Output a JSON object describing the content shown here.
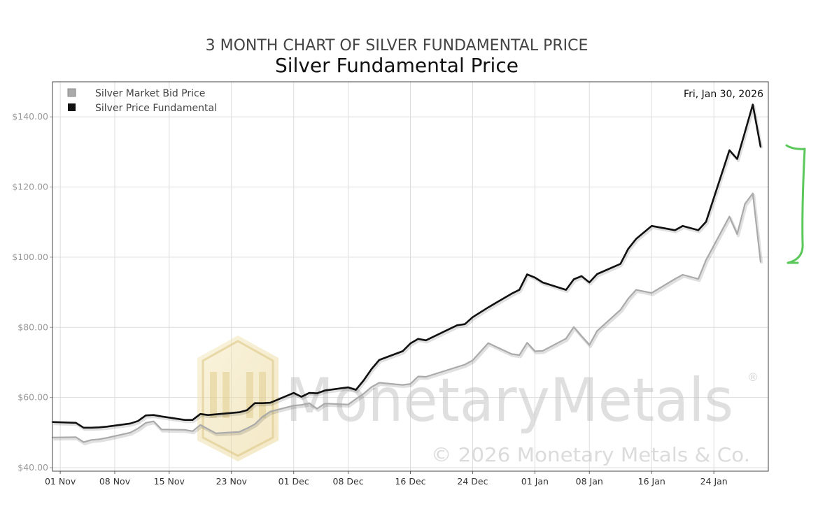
{
  "page": {
    "suptitle": "3 MONTH CHART OF SILVER FUNDAMENTAL PRICE",
    "date_label": "Fri, Jan 30, 2026",
    "watermark": "MonetaryMetals",
    "watermark_registered": "®",
    "copyright": "© 2026 Monetary Metals & Co."
  },
  "colors": {
    "fundamental": "#111111",
    "bid": "#aaaaaa",
    "grid": "#dddddd",
    "annotation": "#5cc85c"
  },
  "chart_data": {
    "type": "line",
    "title": "Silver Fundamental Price",
    "xlabel": "",
    "ylabel": "",
    "ylim": [
      39,
      150
    ],
    "xlim": [
      "2025-10-31",
      "2026-01-31"
    ],
    "grid": true,
    "legend_position": "top-left",
    "y_ticks": [
      40,
      60,
      80,
      100,
      120,
      140
    ],
    "y_tick_labels": [
      "$40.00",
      "$60.00",
      "$80.00",
      "$100.00",
      "$120.00",
      "$140.00"
    ],
    "x_ticks": [
      "2025-11-01",
      "2025-11-08",
      "2025-11-15",
      "2025-11-23",
      "2025-12-01",
      "2025-12-08",
      "2025-12-16",
      "2025-12-24",
      "2026-01-01",
      "2026-01-08",
      "2026-01-16",
      "2026-01-24"
    ],
    "x_tick_labels": [
      "01 Nov",
      "08 Nov",
      "15 Nov",
      "23 Nov",
      "01 Dec",
      "08 Dec",
      "16 Dec",
      "24 Dec",
      "01 Jan",
      "08 Jan",
      "16 Jan",
      "24 Jan"
    ],
    "series": [
      {
        "name": "Silver Market Bid Price",
        "color": "#aaaaaa",
        "points": [
          [
            "2025-10-31",
            48.6
          ],
          [
            "2025-11-03",
            48.7
          ],
          [
            "2025-11-04",
            47.3
          ],
          [
            "2025-11-05",
            47.9
          ],
          [
            "2025-11-06",
            48.1
          ],
          [
            "2025-11-07",
            48.5
          ],
          [
            "2025-11-10",
            50.0
          ],
          [
            "2025-11-11",
            51.2
          ],
          [
            "2025-11-12",
            52.8
          ],
          [
            "2025-11-13",
            53.2
          ],
          [
            "2025-11-14",
            50.9
          ],
          [
            "2025-11-17",
            50.8
          ],
          [
            "2025-11-18",
            50.4
          ],
          [
            "2025-11-19",
            52.2
          ],
          [
            "2025-11-20",
            51.0
          ],
          [
            "2025-11-21",
            49.8
          ],
          [
            "2025-11-24",
            50.2
          ],
          [
            "2025-11-25",
            51.2
          ],
          [
            "2025-11-26",
            52.4
          ],
          [
            "2025-11-27",
            54.5
          ],
          [
            "2025-11-28",
            56.0
          ],
          [
            "2025-12-01",
            57.7
          ],
          [
            "2025-12-02",
            57.9
          ],
          [
            "2025-12-03",
            58.4
          ],
          [
            "2025-12-04",
            56.8
          ],
          [
            "2025-12-05",
            58.3
          ],
          [
            "2025-12-08",
            58.0
          ],
          [
            "2025-12-09",
            59.6
          ],
          [
            "2025-12-10",
            61.1
          ],
          [
            "2025-12-11",
            63.0
          ],
          [
            "2025-12-12",
            64.2
          ],
          [
            "2025-12-15",
            63.6
          ],
          [
            "2025-12-16",
            63.9
          ],
          [
            "2025-12-17",
            66.0
          ],
          [
            "2025-12-18",
            65.9
          ],
          [
            "2025-12-22",
            68.7
          ],
          [
            "2025-12-23",
            69.4
          ],
          [
            "2025-12-24",
            70.6
          ],
          [
            "2025-12-26",
            75.5
          ],
          [
            "2025-12-29",
            72.4
          ],
          [
            "2025-12-30",
            72.1
          ],
          [
            "2025-12-31",
            75.6
          ],
          [
            "2026-01-01",
            73.2
          ],
          [
            "2026-01-02",
            73.3
          ],
          [
            "2026-01-05",
            76.8
          ],
          [
            "2026-01-06",
            80.1
          ],
          [
            "2026-01-07",
            77.5
          ],
          [
            "2026-01-08",
            75.0
          ],
          [
            "2026-01-09",
            79.0
          ],
          [
            "2026-01-12",
            85.0
          ],
          [
            "2026-01-13",
            88.2
          ],
          [
            "2026-01-14",
            90.7
          ],
          [
            "2026-01-16",
            89.8
          ],
          [
            "2026-01-19",
            93.8
          ],
          [
            "2026-01-20",
            95.0
          ],
          [
            "2026-01-22",
            93.8
          ],
          [
            "2026-01-23",
            99.2
          ],
          [
            "2026-01-26",
            111.6
          ],
          [
            "2026-01-27",
            106.6
          ],
          [
            "2026-01-28",
            115.2
          ],
          [
            "2026-01-29",
            118.2
          ],
          [
            "2026-01-30",
            98.7
          ]
        ]
      },
      {
        "name": "Silver Price Fundamental",
        "color": "#111111",
        "points": [
          [
            "2025-10-31",
            53.0
          ],
          [
            "2025-11-03",
            52.8
          ],
          [
            "2025-11-04",
            51.4
          ],
          [
            "2025-11-05",
            51.4
          ],
          [
            "2025-11-06",
            51.5
          ],
          [
            "2025-11-07",
            51.7
          ],
          [
            "2025-11-10",
            52.6
          ],
          [
            "2025-11-11",
            53.3
          ],
          [
            "2025-11-12",
            54.9
          ],
          [
            "2025-11-13",
            55.0
          ],
          [
            "2025-11-14",
            54.6
          ],
          [
            "2025-11-17",
            53.6
          ],
          [
            "2025-11-18",
            53.6
          ],
          [
            "2025-11-19",
            55.3
          ],
          [
            "2025-11-20",
            55.0
          ],
          [
            "2025-11-21",
            55.2
          ],
          [
            "2025-11-24",
            55.8
          ],
          [
            "2025-11-25",
            56.4
          ],
          [
            "2025-11-26",
            58.4
          ],
          [
            "2025-11-27",
            58.4
          ],
          [
            "2025-11-28",
            58.5
          ],
          [
            "2025-12-01",
            61.3
          ],
          [
            "2025-12-02",
            60.2
          ],
          [
            "2025-12-03",
            61.3
          ],
          [
            "2025-12-04",
            61.2
          ],
          [
            "2025-12-05",
            62.0
          ],
          [
            "2025-12-08",
            62.9
          ],
          [
            "2025-12-09",
            62.2
          ],
          [
            "2025-12-10",
            64.9
          ],
          [
            "2025-12-11",
            68.1
          ],
          [
            "2025-12-12",
            70.7
          ],
          [
            "2025-12-15",
            73.2
          ],
          [
            "2025-12-16",
            75.4
          ],
          [
            "2025-12-17",
            76.7
          ],
          [
            "2025-12-18",
            76.3
          ],
          [
            "2025-12-22",
            80.6
          ],
          [
            "2025-12-23",
            80.9
          ],
          [
            "2025-12-24",
            82.9
          ],
          [
            "2025-12-26",
            85.7
          ],
          [
            "2025-12-29",
            89.6
          ],
          [
            "2025-12-30",
            90.7
          ],
          [
            "2025-12-31",
            95.1
          ],
          [
            "2026-01-01",
            94.2
          ],
          [
            "2026-01-02",
            92.8
          ],
          [
            "2026-01-05",
            90.7
          ],
          [
            "2026-01-06",
            93.7
          ],
          [
            "2026-01-07",
            94.6
          ],
          [
            "2026-01-08",
            92.8
          ],
          [
            "2026-01-09",
            95.2
          ],
          [
            "2026-01-12",
            98.1
          ],
          [
            "2026-01-13",
            102.4
          ],
          [
            "2026-01-14",
            105.2
          ],
          [
            "2026-01-16",
            108.9
          ],
          [
            "2026-01-19",
            107.7
          ],
          [
            "2026-01-20",
            108.9
          ],
          [
            "2026-01-22",
            107.7
          ],
          [
            "2026-01-23",
            110.1
          ],
          [
            "2026-01-26",
            130.5
          ],
          [
            "2026-01-27",
            128.0
          ],
          [
            "2026-01-28",
            135.7
          ],
          [
            "2026-01-29",
            143.5
          ],
          [
            "2026-01-30",
            131.5
          ]
        ]
      }
    ]
  }
}
